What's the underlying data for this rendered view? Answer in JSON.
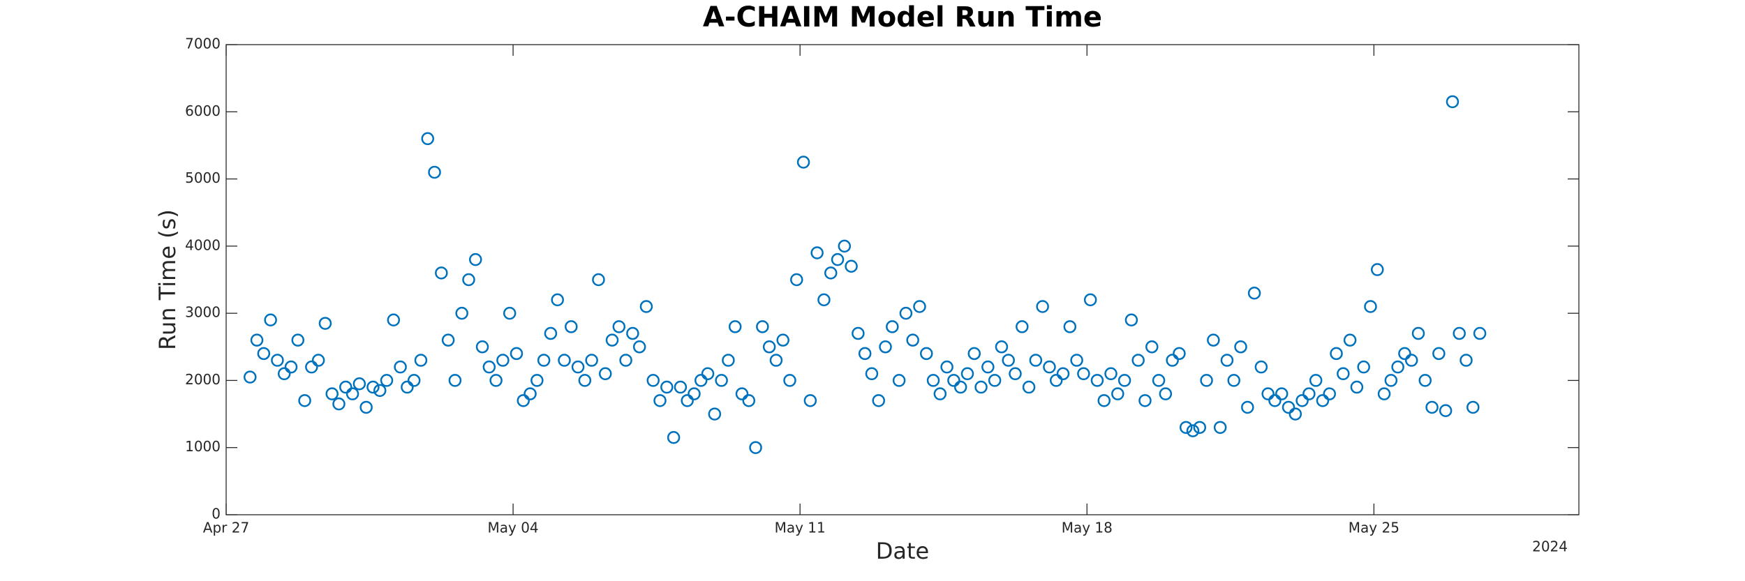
{
  "chart_data": {
    "type": "scatter",
    "title": "A-CHAIM Model Run Time",
    "xlabel": "Date",
    "ylabel": "Run Time (s)",
    "year_label": "2024",
    "color": "#0072bd",
    "marker": "o",
    "xlim": [
      "2024-04-27T00:00",
      "2024-05-30T00:00"
    ],
    "xticks": [
      {
        "value": "2024-04-27T00:00",
        "label": "Apr 27"
      },
      {
        "value": "2024-05-04T00:00",
        "label": "May 04"
      },
      {
        "value": "2024-05-11T00:00",
        "label": "May 11"
      },
      {
        "value": "2024-05-18T00:00",
        "label": "May 18"
      },
      {
        "value": "2024-05-25T00:00",
        "label": "May 25"
      }
    ],
    "ylim": [
      0,
      7000
    ],
    "yticks": [
      0,
      1000,
      2000,
      3000,
      4000,
      5000,
      6000,
      7000
    ],
    "x": [
      "2024-04-27T14:00",
      "2024-04-27T18:00",
      "2024-04-27T22:00",
      "2024-04-28T02:00",
      "2024-04-28T06:00",
      "2024-04-28T10:00",
      "2024-04-28T14:00",
      "2024-04-28T18:00",
      "2024-04-28T22:00",
      "2024-04-29T02:00",
      "2024-04-29T06:00",
      "2024-04-29T10:00",
      "2024-04-29T14:00",
      "2024-04-29T18:00",
      "2024-04-29T22:00",
      "2024-04-30T02:00",
      "2024-04-30T06:00",
      "2024-04-30T10:00",
      "2024-04-30T14:00",
      "2024-04-30T18:00",
      "2024-04-30T22:00",
      "2024-05-01T02:00",
      "2024-05-01T06:00",
      "2024-05-01T10:00",
      "2024-05-01T14:00",
      "2024-05-01T18:00",
      "2024-05-01T22:00",
      "2024-05-02T02:00",
      "2024-05-02T06:00",
      "2024-05-02T10:00",
      "2024-05-02T14:00",
      "2024-05-02T18:00",
      "2024-05-02T22:00",
      "2024-05-03T02:00",
      "2024-05-03T06:00",
      "2024-05-03T10:00",
      "2024-05-03T14:00",
      "2024-05-03T18:00",
      "2024-05-03T22:00",
      "2024-05-04T02:00",
      "2024-05-04T06:00",
      "2024-05-04T10:00",
      "2024-05-04T14:00",
      "2024-05-04T18:00",
      "2024-05-04T22:00",
      "2024-05-05T02:00",
      "2024-05-05T06:00",
      "2024-05-05T10:00",
      "2024-05-05T14:00",
      "2024-05-05T18:00",
      "2024-05-05T22:00",
      "2024-05-06T02:00",
      "2024-05-06T06:00",
      "2024-05-06T10:00",
      "2024-05-06T14:00",
      "2024-05-06T18:00",
      "2024-05-06T22:00",
      "2024-05-07T02:00",
      "2024-05-07T06:00",
      "2024-05-07T10:00",
      "2024-05-07T14:00",
      "2024-05-07T18:00",
      "2024-05-07T22:00",
      "2024-05-08T02:00",
      "2024-05-08T06:00",
      "2024-05-08T10:00",
      "2024-05-08T14:00",
      "2024-05-08T18:00",
      "2024-05-08T22:00",
      "2024-05-09T02:00",
      "2024-05-09T06:00",
      "2024-05-09T10:00",
      "2024-05-09T14:00",
      "2024-05-09T18:00",
      "2024-05-09T22:00",
      "2024-05-10T02:00",
      "2024-05-10T06:00",
      "2024-05-10T10:00",
      "2024-05-10T14:00",
      "2024-05-10T18:00",
      "2024-05-10T22:00",
      "2024-05-11T02:00",
      "2024-05-11T06:00",
      "2024-05-11T10:00",
      "2024-05-11T14:00",
      "2024-05-11T18:00",
      "2024-05-11T22:00",
      "2024-05-12T02:00",
      "2024-05-12T06:00",
      "2024-05-12T10:00",
      "2024-05-12T14:00",
      "2024-05-12T18:00",
      "2024-05-12T22:00",
      "2024-05-13T02:00",
      "2024-05-13T06:00",
      "2024-05-13T10:00",
      "2024-05-13T14:00",
      "2024-05-13T18:00",
      "2024-05-13T22:00",
      "2024-05-14T02:00",
      "2024-05-14T06:00",
      "2024-05-14T10:00",
      "2024-05-14T14:00",
      "2024-05-14T18:00",
      "2024-05-14T22:00",
      "2024-05-15T02:00",
      "2024-05-15T06:00",
      "2024-05-15T10:00",
      "2024-05-15T14:00",
      "2024-05-15T18:00",
      "2024-05-15T22:00",
      "2024-05-16T02:00",
      "2024-05-16T06:00",
      "2024-05-16T10:00",
      "2024-05-16T14:00",
      "2024-05-16T18:00",
      "2024-05-16T22:00",
      "2024-05-17T02:00",
      "2024-05-17T06:00",
      "2024-05-17T10:00",
      "2024-05-17T14:00",
      "2024-05-17T18:00",
      "2024-05-17T22:00",
      "2024-05-18T02:00",
      "2024-05-18T06:00",
      "2024-05-18T10:00",
      "2024-05-18T14:00",
      "2024-05-18T18:00",
      "2024-05-18T22:00",
      "2024-05-19T02:00",
      "2024-05-19T06:00",
      "2024-05-19T10:00",
      "2024-05-19T14:00",
      "2024-05-19T18:00",
      "2024-05-19T22:00",
      "2024-05-20T02:00",
      "2024-05-20T06:00",
      "2024-05-20T10:00",
      "2024-05-20T14:00",
      "2024-05-20T18:00",
      "2024-05-20T22:00",
      "2024-05-21T02:00",
      "2024-05-21T06:00",
      "2024-05-21T10:00",
      "2024-05-21T14:00",
      "2024-05-21T18:00",
      "2024-05-21T22:00",
      "2024-05-22T02:00",
      "2024-05-22T06:00",
      "2024-05-22T10:00",
      "2024-05-22T14:00",
      "2024-05-22T18:00",
      "2024-05-22T22:00",
      "2024-05-23T02:00",
      "2024-05-23T06:00",
      "2024-05-23T10:00",
      "2024-05-23T14:00",
      "2024-05-23T18:00",
      "2024-05-23T22:00",
      "2024-05-24T02:00",
      "2024-05-24T06:00",
      "2024-05-24T10:00",
      "2024-05-24T14:00",
      "2024-05-24T18:00",
      "2024-05-24T22:00",
      "2024-05-25T02:00",
      "2024-05-25T06:00",
      "2024-05-25T10:00",
      "2024-05-25T14:00",
      "2024-05-25T18:00",
      "2024-05-25T22:00",
      "2024-05-26T02:00",
      "2024-05-26T06:00",
      "2024-05-26T10:00",
      "2024-05-26T14:00",
      "2024-05-26T18:00",
      "2024-05-26T22:00",
      "2024-05-27T02:00",
      "2024-05-27T06:00",
      "2024-05-27T10:00",
      "2024-05-27T14:00"
    ],
    "values": [
      2050,
      2600,
      2400,
      2900,
      2300,
      2100,
      2200,
      2600,
      1700,
      2200,
      2300,
      2850,
      1800,
      1650,
      1900,
      1800,
      1950,
      1600,
      1900,
      1850,
      2000,
      2900,
      2200,
      1900,
      2000,
      2300,
      5600,
      5100,
      3600,
      2600,
      2000,
      3000,
      3500,
      3800,
      2500,
      2200,
      2000,
      2300,
      3000,
      2400,
      1700,
      1800,
      2000,
      2300,
      2700,
      3200,
      2300,
      2800,
      2200,
      2000,
      2300,
      3500,
      2100,
      2600,
      2800,
      2300,
      2700,
      2500,
      3100,
      2000,
      1700,
      1900,
      1150,
      1900,
      1700,
      1800,
      2000,
      2100,
      1500,
      2000,
      2300,
      2800,
      1800,
      1700,
      1000,
      2800,
      2500,
      2300,
      2600,
      2000,
      3500,
      5250,
      1700,
      3900,
      3200,
      3600,
      3800,
      4000,
      3700,
      2700,
      2400,
      2100,
      1700,
      2500,
      2800,
      2000,
      3000,
      2600,
      3100,
      2400,
      2000,
      1800,
      2200,
      2000,
      1900,
      2100,
      2400,
      1900,
      2200,
      2000,
      2500,
      2300,
      2100,
      2800,
      1900,
      2300,
      3100,
      2200,
      2000,
      2100,
      2800,
      2300,
      2100,
      3200,
      2000,
      1700,
      2100,
      1800,
      2000,
      2900,
      2300,
      1700,
      2500,
      2000,
      1800,
      2300,
      2400,
      1300,
      1250,
      1300,
      2000,
      2600,
      1300,
      2300,
      2000,
      2500,
      1600,
      3300,
      2200,
      1800,
      1700,
      1800,
      1600,
      1500,
      1700,
      1800,
      2000,
      1700,
      1800,
      2400,
      2100,
      2600,
      1900,
      2200,
      3100,
      3650,
      1800,
      2000,
      2200,
      2400,
      2300,
      2700,
      2000,
      1600,
      2400,
      1550,
      6150,
      2700,
      2300,
      1600,
      2700
    ]
  }
}
